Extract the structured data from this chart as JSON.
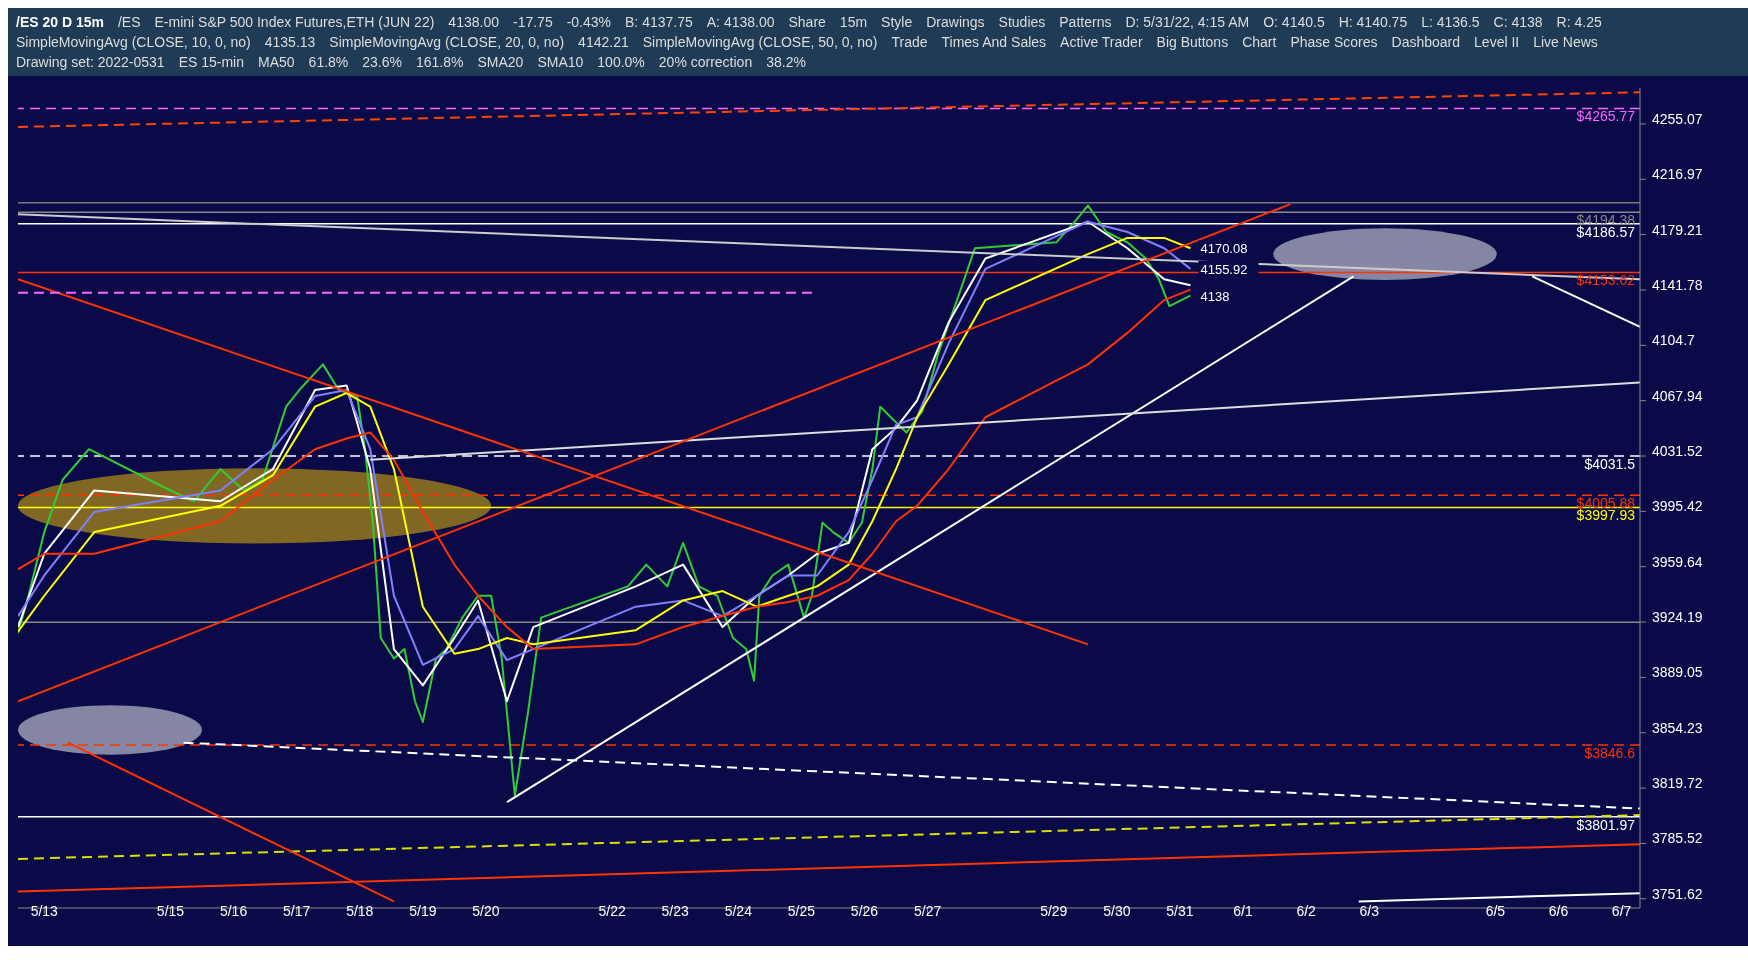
{
  "chart_data": {
    "type": "line",
    "title": "/ES 20 D 15m",
    "log": "y",
    "marker": "none",
    "xlim": [
      "2022-05-12T14:00",
      "2022-06-07T07:00"
    ],
    "ylim": [
      3746,
      4280
    ],
    "xticks": [
      {
        "value": "2022-05-13",
        "label": "5/13"
      },
      {
        "value": "2022-05-15",
        "label": "5/15"
      },
      {
        "value": "2022-05-16",
        "label": "5/16"
      },
      {
        "value": "2022-05-17",
        "label": "5/17"
      },
      {
        "value": "2022-05-18",
        "label": "5/18"
      },
      {
        "value": "2022-05-19",
        "label": "5/19"
      },
      {
        "value": "2022-05-20",
        "label": "5/20"
      },
      {
        "value": "2022-05-22",
        "label": "5/22"
      },
      {
        "value": "2022-05-23",
        "label": "5/23"
      },
      {
        "value": "2022-05-24",
        "label": "5/24"
      },
      {
        "value": "2022-05-25",
        "label": "5/25"
      },
      {
        "value": "2022-05-26",
        "label": "5/26"
      },
      {
        "value": "2022-05-27",
        "label": "5/27"
      },
      {
        "value": "2022-05-29",
        "label": "5/29"
      },
      {
        "value": "2022-05-30",
        "label": "5/30"
      },
      {
        "value": "2022-05-31",
        "label": "5/31"
      },
      {
        "value": "2022-06-01",
        "label": "6/1"
      },
      {
        "value": "2022-06-02",
        "label": "6/2"
      },
      {
        "value": "2022-06-03",
        "label": "6/3"
      },
      {
        "value": "2022-06-05",
        "label": "6/5"
      },
      {
        "value": "2022-06-06",
        "label": "6/6"
      },
      {
        "value": "2022-06-07",
        "label": "6/7"
      }
    ],
    "yticks": [
      3751.62,
      3785.52,
      3819.72,
      3854.23,
      3889.05,
      3924.19,
      3959.64,
      3995.42,
      4031.52,
      4067.94,
      4104.7,
      4141.78,
      4179.21,
      4216.97,
      4255.07
    ],
    "series": [
      {
        "color": "#33cc33",
        "x": [
          "2022-05-12T14:00",
          "2022-05-12T18:00",
          "2022-05-13T00:00",
          "2022-05-13T07:00",
          "2022-05-13T17:00",
          "2022-05-15T00:00",
          "2022-05-15T09:00",
          "2022-05-15T19:00",
          "2022-05-16T04:00",
          "2022-05-16T11:00",
          "2022-05-16T20:00",
          "2022-05-17T01:00",
          "2022-05-17T10:00",
          "2022-05-17T16:00",
          "2022-05-17T23:00",
          "2022-05-18T02:00",
          "2022-05-18T05:00",
          "2022-05-18T08:00",
          "2022-05-18T13:00",
          "2022-05-18T17:00",
          "2022-05-18T21:00",
          "2022-05-19T00:00",
          "2022-05-19T05:00",
          "2022-05-19T09:00",
          "2022-05-19T15:00",
          "2022-05-19T21:00",
          "2022-05-20T02:00",
          "2022-05-20T06:00",
          "2022-05-20T11:00",
          "2022-05-20T16:00",
          "2022-05-20T21:00",
          "2022-05-22T06:00",
          "2022-05-22T13:00",
          "2022-05-22T21:00",
          "2022-05-23T03:00",
          "2022-05-23T09:00",
          "2022-05-23T16:00",
          "2022-05-23T22:00",
          "2022-05-24T03:00",
          "2022-05-24T06:00",
          "2022-05-24T08:00",
          "2022-05-24T13:00",
          "2022-05-24T19:00",
          "2022-05-25T01:00",
          "2022-05-25T04:00",
          "2022-05-25T08:00",
          "2022-05-25T12:00",
          "2022-05-25T18:00",
          "2022-05-25T23:00",
          "2022-05-26T03:00",
          "2022-05-26T06:00",
          "2022-05-26T10:00",
          "2022-05-26T16:00",
          "2022-05-26T22:00",
          "2022-05-27T04:00",
          "2022-05-27T11:00",
          "2022-05-27T18:00",
          "2022-05-29T01:00",
          "2022-05-29T08:00",
          "2022-05-29T13:00",
          "2022-05-29T20:00",
          "2022-05-30T04:00",
          "2022-05-30T11:00",
          "2022-05-30T16:00",
          "2022-05-30T20:00",
          "2022-05-31T04:00"
        ],
        "values": [
          3917,
          3941,
          3982,
          4016,
          4036,
          4009,
          4002,
          4023,
          4009,
          4016,
          4064,
          4075,
          4092,
          4075,
          4071,
          4036,
          3988,
          3914,
          3901,
          3907,
          3874,
          3861,
          3901,
          3907,
          3927,
          3941,
          3941,
          3901,
          3815,
          3867,
          3927,
          3947,
          3961,
          3947,
          3975,
          3947,
          3941,
          3914,
          3907,
          3887,
          3941,
          3954,
          3961,
          3927,
          3941,
          3988,
          3982,
          3975,
          3988,
          4023,
          4064,
          4057,
          4047,
          4061,
          4099,
          4134,
          4170,
          4174,
          4188,
          4199,
          4181,
          4174,
          4163,
          4149,
          4131,
          4138
        ]
      },
      {
        "color": "#ffffff",
        "x": [
          "2022-05-12T14:00",
          "2022-05-13T00:00",
          "2022-05-13T19:00",
          "2022-05-15T19:00",
          "2022-05-16T15:00",
          "2022-05-17T07:00",
          "2022-05-17T19:00",
          "2022-05-18T04:00",
          "2022-05-18T13:00",
          "2022-05-19T00:00",
          "2022-05-19T12:00",
          "2022-05-19T21:00",
          "2022-05-20T08:00",
          "2022-05-20T18:00",
          "2022-05-22T09:00",
          "2022-05-23T03:00",
          "2022-05-23T18:00",
          "2022-05-24T07:00",
          "2022-05-24T19:00",
          "2022-05-25T06:00",
          "2022-05-25T18:00",
          "2022-05-26T03:00",
          "2022-05-26T12:00",
          "2022-05-26T20:00",
          "2022-05-27T08:00",
          "2022-05-27T22:00",
          "2022-05-29T13:00",
          "2022-05-30T04:00",
          "2022-05-30T18:00",
          "2022-05-31T04:00"
        ],
        "values": [
          3921,
          3968,
          4009,
          4002,
          4023,
          4075,
          4078,
          4023,
          3907,
          3884,
          3914,
          3938,
          3874,
          3921,
          3947,
          3961,
          3921,
          3941,
          3954,
          3968,
          3975,
          4036,
          4050,
          4068,
          4120,
          4163,
          4188,
          4170,
          4149,
          4145
        ]
      },
      {
        "color": "#8080ff",
        "x": [
          "2022-05-12T14:00",
          "2022-05-13T00:00",
          "2022-05-13T19:00",
          "2022-05-15T19:00",
          "2022-05-16T15:00",
          "2022-05-17T07:00",
          "2022-05-17T19:00",
          "2022-05-18T04:00",
          "2022-05-18T13:00",
          "2022-05-19T00:00",
          "2022-05-19T12:00",
          "2022-05-19T21:00",
          "2022-05-20T08:00",
          "2022-05-20T18:00",
          "2022-05-22T09:00",
          "2022-05-23T03:00",
          "2022-05-23T18:00",
          "2022-05-24T07:00",
          "2022-05-24T19:00",
          "2022-05-25T06:00",
          "2022-05-25T18:00",
          "2022-05-26T03:00",
          "2022-05-26T12:00",
          "2022-05-26T20:00",
          "2022-05-27T08:00",
          "2022-05-27T22:00",
          "2022-05-29T13:00",
          "2022-05-30T04:00",
          "2022-05-30T18:00",
          "2022-05-31T04:00"
        ],
        "values": [
          3928,
          3954,
          3995,
          4009,
          4036,
          4071,
          4075,
          4036,
          3941,
          3897,
          3907,
          3928,
          3900,
          3907,
          3934,
          3938,
          3928,
          3941,
          3954,
          3954,
          3982,
          4016,
          4052,
          4057,
          4106,
          4156,
          4188,
          4181,
          4170,
          4156
        ]
      },
      {
        "color": "#ffff00",
        "x": [
          "2022-05-12T14:00",
          "2022-05-13T00:00",
          "2022-05-13T19:00",
          "2022-05-15T19:00",
          "2022-05-16T15:00",
          "2022-05-17T07:00",
          "2022-05-17T19:00",
          "2022-05-18T04:00",
          "2022-05-18T13:00",
          "2022-05-19T00:00",
          "2022-05-19T12:00",
          "2022-05-19T21:00",
          "2022-05-20T08:00",
          "2022-05-20T18:00",
          "2022-05-22T09:00",
          "2022-05-23T03:00",
          "2022-05-23T18:00",
          "2022-05-24T07:00",
          "2022-05-24T19:00",
          "2022-05-25T06:00",
          "2022-05-25T18:00",
          "2022-05-26T03:00",
          "2022-05-26T12:00",
          "2022-05-26T20:00",
          "2022-05-27T08:00",
          "2022-05-27T22:00",
          "2022-05-29T13:00",
          "2022-05-30T04:00",
          "2022-05-30T18:00",
          "2022-05-31T04:00"
        ],
        "values": [
          3918,
          3941,
          3982,
          3999,
          4019,
          4064,
          4073,
          4064,
          4023,
          3934,
          3904,
          3907,
          3914,
          3910,
          3919,
          3938,
          3944,
          3934,
          3941,
          3947,
          3961,
          3989,
          4023,
          4057,
          4092,
          4135,
          4166,
          4177,
          4177,
          4170
        ]
      },
      {
        "color": "#ff3300",
        "x": [
          "2022-05-12T14:00",
          "2022-05-13T00:00",
          "2022-05-13T19:00",
          "2022-05-15T19:00",
          "2022-05-16T15:00",
          "2022-05-17T07:00",
          "2022-05-17T19:00",
          "2022-05-18T04:00",
          "2022-05-18T13:00",
          "2022-05-19T00:00",
          "2022-05-19T12:00",
          "2022-05-19T21:00",
          "2022-05-20T08:00",
          "2022-05-20T18:00",
          "2022-05-22T09:00",
          "2022-05-23T03:00",
          "2022-05-23T18:00",
          "2022-05-24T07:00",
          "2022-05-24T19:00",
          "2022-05-25T06:00",
          "2022-05-25T18:00",
          "2022-05-26T03:00",
          "2022-05-26T12:00",
          "2022-05-26T20:00",
          "2022-05-27T08:00",
          "2022-05-27T22:00",
          "2022-05-29T13:00",
          "2022-05-30T04:00",
          "2022-05-30T18:00",
          "2022-05-31T04:00"
        ],
        "values": [
          3958,
          3968,
          3968,
          3989,
          4016,
          4036,
          4043,
          4047,
          4029,
          3995,
          3961,
          3941,
          3921,
          3907,
          3910,
          3921,
          3928,
          3934,
          3937,
          3941,
          3951,
          3968,
          3989,
          3999,
          4023,
          4057,
          4092,
          4113,
          4135,
          4142
        ]
      },
      {
        "color": "#ffffff",
        "x": [
          "2022-05-20T08:00",
          "2022-06-02T18:00"
        ],
        "values": [
          3811,
          4151
        ]
      },
      {
        "color": "#cccccc",
        "x": [
          "2022-05-12T14:00",
          "2022-06-07T07:00"
        ],
        "values": [
          4193,
          4149
        ]
      },
      {
        "color": "#dddddd",
        "x": [
          "2022-05-18T04:00",
          "2022-06-07T07:00"
        ],
        "values": [
          4029,
          4080
        ]
      },
      {
        "color": "#ffffff",
        "line_style": "dashed",
        "x": [
          "2022-05-15T05:00",
          "2022-06-07T07:00"
        ],
        "values": [
          3848,
          3807
        ]
      },
      {
        "color": "#dddd00",
        "line_style": "dashed",
        "x": [
          "2022-05-12T14:00",
          "2022-06-07T07:00"
        ],
        "values": [
          3776,
          3803
        ]
      },
      {
        "color": "#ff3300",
        "x": [
          "2022-05-12T14:00",
          "2022-06-07T07:00"
        ],
        "values": [
          3756,
          3785
        ]
      },
      {
        "color": "#ff3300",
        "x": [
          "2022-05-12T14:00",
          "2022-05-29T13:00"
        ],
        "values": [
          4149,
          3910
        ]
      },
      {
        "color": "#ff3300",
        "x": [
          "2022-05-12T14:00",
          "2022-06-01T18:00"
        ],
        "values": [
          3874,
          4200
        ]
      },
      {
        "color": "#ff3300",
        "x": [
          "2022-05-13T09:00",
          "2022-05-18T13:00"
        ],
        "values": [
          3848,
          3750
        ]
      },
      {
        "color": "#ffffff",
        "x": [
          "2022-06-05T14:00",
          "2022-06-07T07:00"
        ],
        "values": [
          4151,
          4117
        ]
      },
      {
        "color": "#ff4400",
        "line_style": "dashed",
        "x": [
          "2022-05-12T14:00",
          "2022-06-07T07:00"
        ],
        "values": [
          4253,
          4277
        ]
      },
      {
        "color": "#ff66ff",
        "line_style": "dashed",
        "x": [
          "2022-05-12T14:00",
          "2022-05-25T04:00"
        ],
        "values": [
          4140,
          4140
        ]
      },
      {
        "color": "#ffffff",
        "x": [
          "2022-06-02T20:00",
          "2022-06-07T07:00"
        ],
        "values": [
          3750,
          3755
        ]
      }
    ],
    "ref_lines": [
      {
        "axis": "y",
        "value": 4265.77,
        "label": "$4265.77",
        "color": "#ff66ff",
        "line_style": "dashed"
      },
      {
        "axis": "y",
        "value": 4201,
        "color": "#777777"
      },
      {
        "axis": "y",
        "value": 4194.38,
        "label": "$4194.38",
        "color": "#888888"
      },
      {
        "axis": "y",
        "value": 4186.57,
        "label": "$4186.57",
        "color": "#ffffff"
      },
      {
        "axis": "y",
        "value": 4153.62,
        "label": "$4153.62",
        "color": "#ff3300"
      },
      {
        "axis": "y",
        "value": 4031.5,
        "label": "$4031.5",
        "color": "#ffffff",
        "line_style": "dashed"
      },
      {
        "axis": "y",
        "value": 4005.88,
        "label": "$4005.88",
        "color": "#ff3300",
        "line_style": "dashed"
      },
      {
        "axis": "y",
        "value": 3997.93,
        "label": "$3997.93",
        "color": "#ffff00"
      },
      {
        "axis": "y",
        "value": 3924,
        "color": "#888888"
      },
      {
        "axis": "y",
        "value": 3846.6,
        "label": "$3846.6",
        "color": "#ff3300",
        "line_style": "dashed"
      },
      {
        "axis": "y",
        "value": 3801.97,
        "label": "$3801.97",
        "color": "#ffffff"
      }
    ],
    "annotations": [
      "/ES",
      "E-mini S&P 500 Index Futures,ETH (JUN 22)",
      "4138.00",
      "-17.75",
      "-0.43%",
      "B: 4137.75",
      "A: 4138.00",
      "Share",
      "15m",
      "Style",
      "Drawings",
      "Studies",
      "Patterns",
      "D: 5/31/22, 4:15 AM",
      "O: 4140.5",
      "H: 4140.75",
      "L: 4136.5",
      "C: 4138",
      "R: 4.25",
      "SimpleMovingAvg (CLOSE, 10, 0, no)",
      "4135.13",
      "SimpleMovingAvg (CLOSE, 20, 0, no)",
      "4142.21",
      "SimpleMovingAvg (CLOSE, 50, 0, no)",
      "Trade",
      "Times And Sales",
      "Active Trader",
      "Big Buttons",
      "Chart",
      "Phase Scores",
      "Dashboard",
      "Level II",
      "Live News",
      "Drawing set: 2022-0531",
      "ES 15-min",
      "MA50",
      "61.8%",
      "23.6%",
      "161.8%",
      "SMA20",
      "SMA10",
      "100.0%",
      "20% correction",
      "38.2%",
      {
        "text": "4170.08",
        "x": "2022-05-31T04:00",
        "y": 4170
      },
      {
        "text": "4155.92",
        "x": "2022-05-31T04:00",
        "y": 4156
      },
      {
        "text": "4138",
        "x": "2022-05-31T04:00",
        "y": 4138
      }
    ]
  }
}
